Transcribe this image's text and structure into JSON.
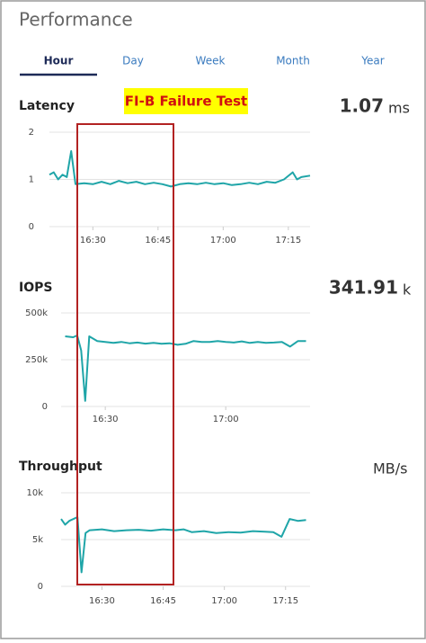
{
  "header": {
    "title": "Performance"
  },
  "tabs": [
    "Hour",
    "Day",
    "Week",
    "Month",
    "Year"
  ],
  "annotation": "FI-B Failure Test",
  "chart_data": [
    {
      "type": "line",
      "title": "Latency",
      "current": 1.07,
      "unit": "ms",
      "color": "#1fa5a8",
      "grid": true,
      "x": [
        "16:20",
        "16:21",
        "16:22",
        "16:23",
        "16:24",
        "16:25",
        "16:26",
        "16:28",
        "16:30",
        "16:32",
        "16:34",
        "16:36",
        "16:38",
        "16:40",
        "16:42",
        "16:44",
        "16:46",
        "16:48",
        "16:50",
        "16:52",
        "16:54",
        "16:56",
        "16:58",
        "17:00",
        "17:02",
        "17:04",
        "17:06",
        "17:08",
        "17:10",
        "17:12",
        "17:14",
        "17:16",
        "17:17",
        "17:18",
        "17:20"
      ],
      "values": [
        1.1,
        1.15,
        1.0,
        1.1,
        1.05,
        1.6,
        0.9,
        0.92,
        0.9,
        0.95,
        0.9,
        0.97,
        0.92,
        0.95,
        0.9,
        0.93,
        0.9,
        0.85,
        0.9,
        0.92,
        0.9,
        0.93,
        0.9,
        0.92,
        0.88,
        0.9,
        0.93,
        0.9,
        0.95,
        0.93,
        1.0,
        1.15,
        1.0,
        1.05,
        1.08
      ],
      "xlim": [
        "16:20",
        "17:20"
      ],
      "xticks": [
        "16:30",
        "16:45",
        "17:00",
        "17:15"
      ],
      "ylim": [
        0,
        2
      ],
      "yticks": [
        0,
        1,
        2
      ]
    },
    {
      "type": "line",
      "title": "IOPS",
      "current": 341.91,
      "unit": "k",
      "color": "#1fa5a8",
      "grid": true,
      "x": [
        "16:20",
        "16:22",
        "16:23",
        "16:24",
        "16:25",
        "16:26",
        "16:28",
        "16:30",
        "16:32",
        "16:34",
        "16:36",
        "16:38",
        "16:40",
        "16:42",
        "16:44",
        "16:46",
        "16:48",
        "16:50",
        "16:52",
        "16:54",
        "16:56",
        "16:58",
        "17:00",
        "17:02",
        "17:04",
        "17:06",
        "17:08",
        "17:10",
        "17:12",
        "17:14",
        "17:16",
        "17:18",
        "17:20"
      ],
      "values": [
        375000,
        370000,
        380000,
        300000,
        30000,
        375000,
        350000,
        345000,
        340000,
        345000,
        338000,
        342000,
        336000,
        340000,
        335000,
        338000,
        330000,
        335000,
        350000,
        345000,
        345000,
        350000,
        345000,
        342000,
        348000,
        340000,
        345000,
        340000,
        342000,
        345000,
        320000,
        350000,
        350000
      ],
      "xlim": [
        "16:19",
        "17:21"
      ],
      "xticks": [
        "16:30",
        "17:00"
      ],
      "ylim": [
        0,
        500000
      ],
      "yticks": [
        0,
        {
          "value": 250000,
          "label": "250k"
        },
        {
          "value": 500000,
          "label": "500k"
        }
      ]
    },
    {
      "type": "line",
      "title": "Throughput",
      "unit": "MB/s",
      "color": "#1fa5a8",
      "grid": true,
      "x": [
        "16:20",
        "16:21",
        "16:22",
        "16:24",
        "16:25",
        "16:26",
        "16:27",
        "16:30",
        "16:33",
        "16:36",
        "16:39",
        "16:42",
        "16:45",
        "16:48",
        "16:50",
        "16:52",
        "16:55",
        "16:58",
        "17:01",
        "17:04",
        "17:07",
        "17:10",
        "17:12",
        "17:14",
        "17:16",
        "17:18",
        "17:20"
      ],
      "values": [
        7200,
        6600,
        7000,
        7400,
        1500,
        5700,
        6000,
        6100,
        5900,
        6000,
        6050,
        5950,
        6100,
        6000,
        6100,
        5800,
        5900,
        5700,
        5800,
        5750,
        5900,
        5850,
        5800,
        5300,
        7200,
        7000,
        7100
      ],
      "xlim": [
        "16:20",
        "17:21"
      ],
      "xticks": [
        "16:30",
        "16:45",
        "17:00",
        "17:15"
      ],
      "ylim": [
        0,
        10000
      ],
      "yticks": [
        0,
        {
          "value": 5000,
          "label": "5k"
        },
        {
          "value": 10000,
          "label": "10k"
        }
      ]
    }
  ]
}
